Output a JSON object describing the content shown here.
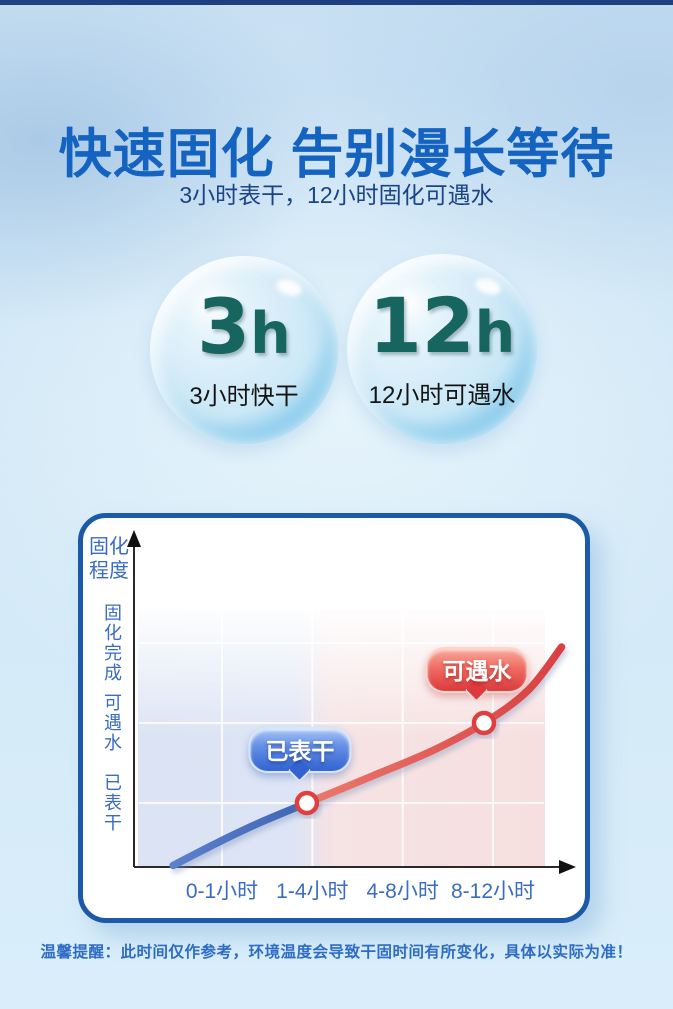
{
  "page": {
    "title": "快速固化 告别漫长等待",
    "subtitle": "3小时表干，12小时固化可遇水",
    "disclaimer": "温馨提醒：此时间仅作参考，环境温度会导致干固时间有所变化，具体以实际为准！"
  },
  "highlights": [
    {
      "value": "3",
      "unit": "h",
      "label": "3小时快干"
    },
    {
      "value": "12",
      "unit": "h",
      "label": "12小时可遇水"
    }
  ],
  "colors": {
    "title_blue": "#1563c0",
    "subtitle_navy": "#1a4486",
    "highlight_teal": "#17655f",
    "card_border": "#1c5aa8",
    "axis_label_blue": "#3a6cc3",
    "curve_blue": "#4a70c0",
    "curve_red": "#e05450",
    "badge_blue": "#3263d0",
    "badge_red": "#dc3a3d",
    "top_bar_navy": "#1e4080",
    "background_blue": "#cfe5f6"
  },
  "chart_data": {
    "type": "line",
    "y_axis_title": "固化程度",
    "x_tick_labels": [
      "0-1小时",
      "1-4小时",
      "4-8小时",
      "8-12小时"
    ],
    "y_tick_labels": [
      "已表干",
      "可遇水",
      "固化完成"
    ],
    "grid": true,
    "legend": false,
    "x_range_categories": 4,
    "y_levels": 3,
    "series": [
      {
        "name": "已表干",
        "color_start": "#5c80cc",
        "color_end": "#3f65b4",
        "points": [
          [
            -0.54,
            0.22
          ],
          [
            -0.04,
            0.51
          ],
          [
            0.43,
            0.76
          ],
          [
            0.94,
            1.0
          ]
        ]
      },
      {
        "name": "可遇水",
        "color_start": "#ea7a6e",
        "color_end": "#da4042",
        "points": [
          [
            0.94,
            1.0
          ],
          [
            1.67,
            1.34
          ],
          [
            2.34,
            1.66
          ],
          [
            2.9,
            2.0
          ],
          [
            3.39,
            2.41
          ],
          [
            3.76,
            2.95
          ]
        ]
      }
    ],
    "markers": [
      [
        0.94,
        1.0
      ],
      [
        2.9,
        2.0
      ]
    ],
    "annotations": [
      {
        "label": "已表干",
        "x": 0.94,
        "y": 1.0,
        "theme": "blue"
      },
      {
        "label": "可遇水",
        "x": 2.9,
        "y": 2.0,
        "theme": "red"
      }
    ]
  }
}
